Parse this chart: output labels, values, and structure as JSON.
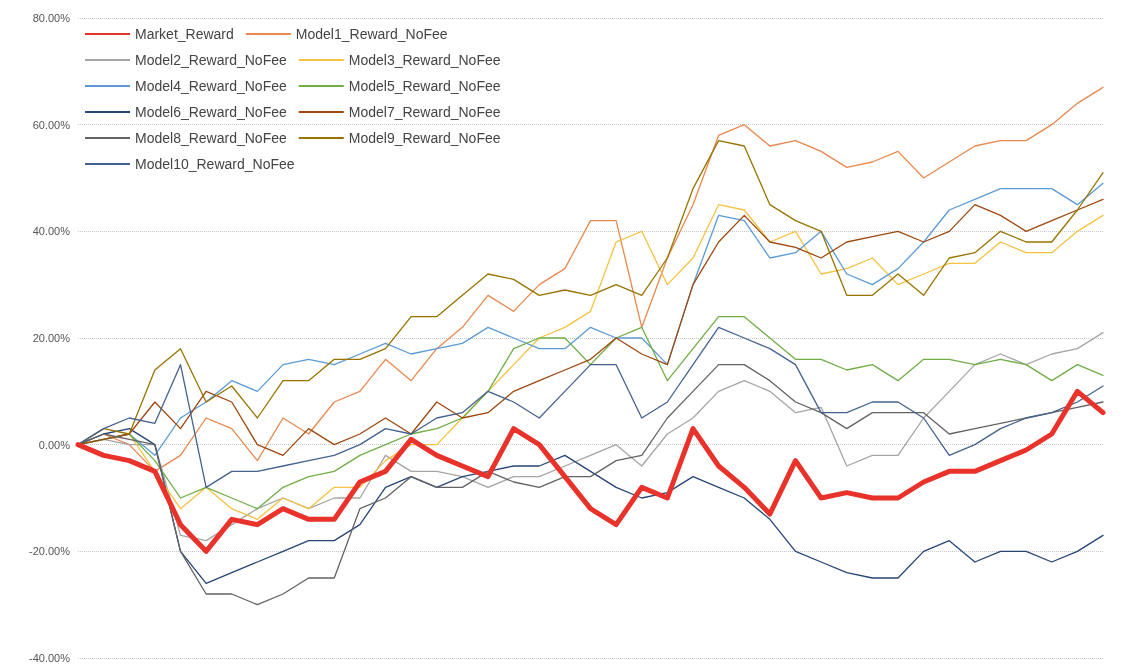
{
  "chart_data": {
    "type": "line",
    "categories": [
      null,
      null,
      null,
      null,
      null,
      null,
      null,
      null,
      null,
      null,
      null,
      null,
      null,
      null,
      null,
      null,
      null,
      null,
      null,
      null,
      null,
      null,
      null,
      null,
      null,
      null,
      null,
      null,
      null,
      null,
      null,
      null,
      null,
      null,
      null,
      null,
      null,
      null,
      null,
      null,
      null
    ],
    "ylim": [
      -40,
      80
    ],
    "yticks": [
      {
        "value": -40,
        "label": "-40.00%"
      },
      {
        "value": -20,
        "label": "-20.00%"
      },
      {
        "value": 0,
        "label": "0.00%"
      },
      {
        "value": 20,
        "label": "20.00%"
      },
      {
        "value": 40,
        "label": "40.00%"
      },
      {
        "value": 60,
        "label": "60.00%"
      },
      {
        "value": 80,
        "label": "80.00%"
      }
    ],
    "grid": "y",
    "legend": "top left",
    "tick_labels": "y",
    "marker": "none",
    "line_style": "solid",
    "series": [
      {
        "name": "Market_Reward",
        "color": "#e8322a",
        "values": [
          0,
          -2,
          -3,
          -5,
          -15,
          -20,
          -14,
          -15,
          -12,
          -14,
          -14,
          -7,
          -5,
          1,
          -2,
          -4,
          -6,
          3,
          0,
          -6,
          -12,
          -15,
          -8,
          -10,
          3,
          -4,
          -8,
          -13,
          -3,
          -10,
          -9,
          -10,
          -10,
          -7,
          -5,
          -5,
          -3,
          -1,
          2,
          10,
          6
        ]
      },
      {
        "name": "Model1_Reward_NoFee",
        "color": "#e8884e",
        "values": [
          0,
          2,
          0,
          -5,
          -2,
          5,
          3,
          -3,
          5,
          2,
          8,
          10,
          16,
          12,
          18,
          22,
          28,
          25,
          30,
          33,
          42,
          42,
          22,
          35,
          45,
          58,
          60,
          56,
          57,
          55,
          52,
          53,
          55,
          50,
          53,
          56,
          57,
          57,
          60,
          64,
          67
        ]
      },
      {
        "name": "Model2_Reward_NoFee",
        "color": "#a5a5a5",
        "values": [
          0,
          1,
          0,
          0,
          -17,
          -18,
          -15,
          -12,
          -10,
          -12,
          -10,
          -10,
          -2,
          -5,
          -5,
          -6,
          -8,
          -6,
          -6,
          -4,
          -2,
          0,
          -4,
          2,
          5,
          10,
          12,
          10,
          6,
          7,
          -4,
          -2,
          -2,
          5,
          10,
          15,
          17,
          15,
          17,
          18,
          21
        ]
      },
      {
        "name": "Model3_Reward_NoFee",
        "color": "#f5c242",
        "values": [
          0,
          1,
          2,
          -5,
          -12,
          -8,
          -12,
          -14,
          -10,
          -12,
          -8,
          -8,
          -3,
          0,
          0,
          5,
          10,
          15,
          20,
          22,
          25,
          38,
          40,
          30,
          35,
          45,
          44,
          38,
          40,
          32,
          33,
          35,
          30,
          32,
          34,
          34,
          38,
          36,
          36,
          40,
          43
        ]
      },
      {
        "name": "Model4_Reward_NoFee",
        "color": "#5b9bd5",
        "values": [
          0,
          1,
          2,
          -2,
          5,
          8,
          12,
          10,
          15,
          16,
          15,
          17,
          19,
          17,
          18,
          19,
          22,
          20,
          18,
          18,
          22,
          20,
          20,
          15,
          30,
          43,
          42,
          35,
          36,
          40,
          32,
          30,
          33,
          38,
          44,
          46,
          48,
          48,
          48,
          45,
          49
        ]
      },
      {
        "name": "Model5_Reward_NoFee",
        "color": "#70ad47",
        "values": [
          0,
          1,
          2,
          -3,
          -10,
          -8,
          -10,
          -12,
          -8,
          -6,
          -5,
          -2,
          0,
          2,
          3,
          5,
          10,
          18,
          20,
          20,
          15,
          20,
          22,
          12,
          18,
          24,
          24,
          20,
          16,
          16,
          14,
          15,
          12,
          16,
          16,
          15,
          16,
          15,
          12,
          15,
          13
        ]
      },
      {
        "name": "Model6_Reward_NoFee",
        "color": "#264478",
        "values": [
          0,
          2,
          3,
          0,
          -20,
          -26,
          -24,
          -22,
          -20,
          -18,
          -18,
          -15,
          -8,
          -6,
          -8,
          -6,
          -5,
          -4,
          -4,
          -2,
          -5,
          -8,
          -10,
          -9,
          -6,
          -8,
          -10,
          -14,
          -20,
          -22,
          -24,
          -25,
          -25,
          -20,
          -18,
          -22,
          -20,
          -20,
          -22,
          -20,
          -17
        ]
      },
      {
        "name": "Model7_Reward_NoFee",
        "color": "#9e480e",
        "values": [
          0,
          1,
          2,
          8,
          3,
          10,
          8,
          0,
          -2,
          3,
          0,
          2,
          5,
          2,
          8,
          5,
          6,
          10,
          12,
          14,
          16,
          20,
          17,
          15,
          30,
          38,
          43,
          38,
          37,
          35,
          38,
          39,
          40,
          38,
          40,
          45,
          43,
          40,
          42,
          44,
          46
        ]
      },
      {
        "name": "Model8_Reward_NoFee",
        "color": "#636363",
        "values": [
          0,
          2,
          1,
          0,
          -20,
          -28,
          -28,
          -30,
          -28,
          -25,
          -25,
          -12,
          -10,
          -6,
          -8,
          -8,
          -5,
          -7,
          -8,
          -6,
          -6,
          -3,
          -2,
          5,
          10,
          15,
          15,
          12,
          8,
          6,
          3,
          6,
          6,
          6,
          2,
          3,
          4,
          5,
          6,
          7,
          8
        ]
      },
      {
        "name": "Model9_Reward_NoFee",
        "color": "#997300",
        "values": [
          0,
          3,
          2,
          14,
          18,
          8,
          11,
          5,
          12,
          12,
          16,
          16,
          18,
          24,
          24,
          28,
          32,
          31,
          28,
          29,
          28,
          30,
          28,
          35,
          48,
          57,
          56,
          45,
          42,
          40,
          28,
          28,
          32,
          28,
          35,
          36,
          40,
          38,
          38,
          44,
          51
        ]
      },
      {
        "name": "Model10_Reward_NoFee",
        "color": "#43628e",
        "values": [
          0,
          3,
          5,
          4,
          15,
          -8,
          -5,
          -5,
          -4,
          -3,
          -2,
          0,
          3,
          2,
          5,
          6,
          10,
          8,
          5,
          10,
          15,
          15,
          5,
          8,
          15,
          22,
          20,
          18,
          15,
          6,
          6,
          8,
          8,
          5,
          -2,
          0,
          3,
          5,
          6,
          8,
          11
        ]
      }
    ]
  }
}
